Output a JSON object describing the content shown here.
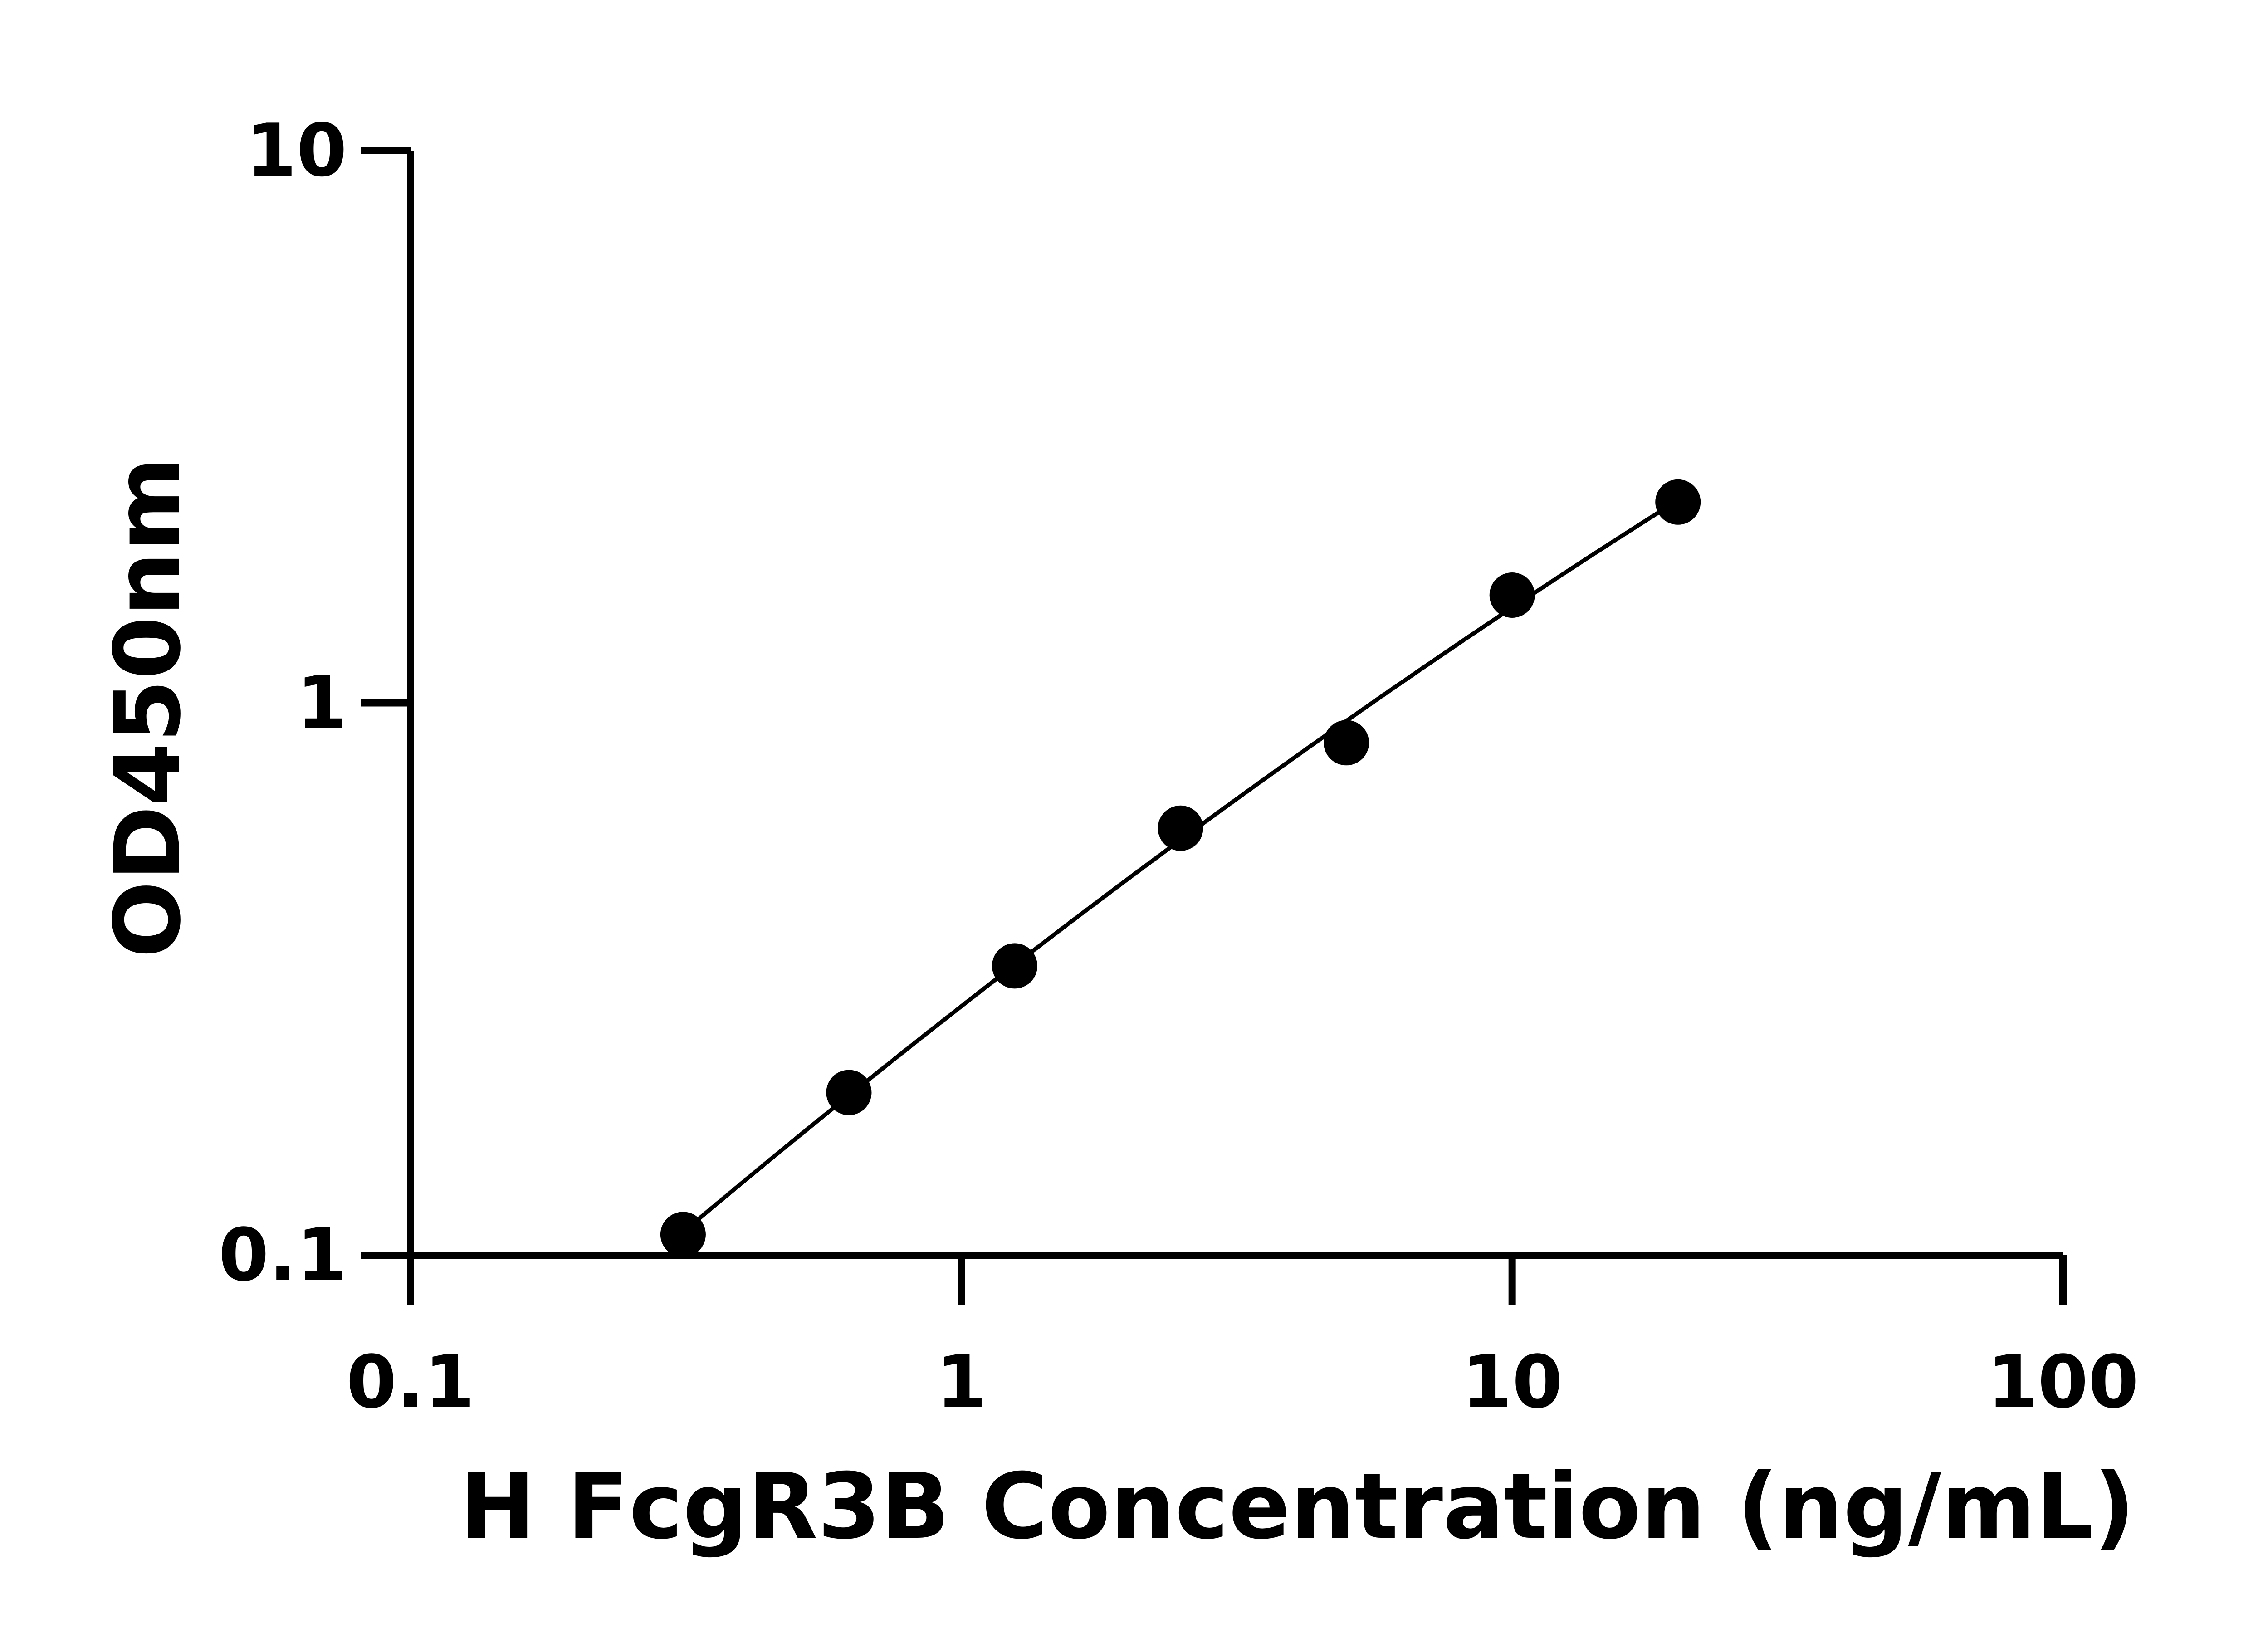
{
  "chart_data": {
    "type": "scatter",
    "title": "",
    "xlabel": "H FcgR3B Concentration (ng/mL)",
    "ylabel": "OD450nm",
    "xscale": "log",
    "yscale": "log",
    "xlim": [
      0.1,
      100
    ],
    "ylim": [
      0.1,
      10
    ],
    "xticks": [
      "0.1",
      "1",
      "10",
      "100"
    ],
    "yticks": [
      "0.1",
      "1",
      "10"
    ],
    "grid": false,
    "fit_curve": true,
    "series": [
      {
        "x": [
          0.3125,
          0.625,
          1.25,
          2.5,
          5,
          10,
          20
        ],
        "y": [
          0.109,
          0.197,
          0.334,
          0.593,
          0.847,
          1.567,
          2.31
        ]
      }
    ],
    "colors": {
      "points": "#000000",
      "line": "#000000",
      "axes": "#000000"
    }
  }
}
